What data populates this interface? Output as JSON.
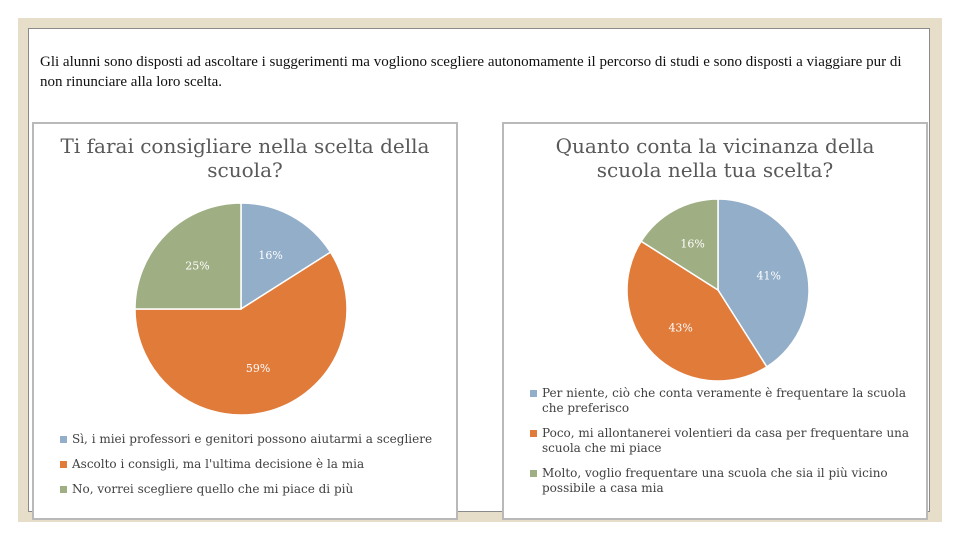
{
  "caption": "Gli alunni sono disposti ad ascoltare i suggerimenti ma vogliono scegliere autonomamente il percorso di studi e sono disposti a viaggiare pur di non rinunciare alla loro scelta.",
  "chart_data": [
    {
      "type": "pie",
      "title": "Ti farai consigliare nella scelta della scuola?",
      "categories": [
        "Sì, i miei professori e genitori possono aiutarmi a scegliere",
        "Ascolto i consigli, ma l'ultima decisione è la mia",
        "No, vorrei scegliere quello che mi piace di più"
      ],
      "values": [
        16,
        59,
        25
      ],
      "labels": [
        "16%",
        "59%",
        "25%"
      ],
      "colors": [
        "#92aec9",
        "#e07b3a",
        "#9fae83"
      ],
      "legend": "bottom"
    },
    {
      "type": "pie",
      "title": "Quanto conta la vicinanza della scuola nella tua scelta?",
      "categories": [
        "Per niente, ciò che conta veramente è frequentare la scuola che preferisco",
        "Poco, mi allontanerei volentieri da casa per frequentare una scuola che mi piace",
        "Molto, voglio frequentare una scuola che sia il più vicino possibile a casa mia"
      ],
      "values": [
        41,
        43,
        16
      ],
      "labels": [
        "41%",
        "43%",
        "16%"
      ],
      "colors": [
        "#92aec9",
        "#e07b3a",
        "#9fae83"
      ],
      "legend": "bottom"
    }
  ]
}
